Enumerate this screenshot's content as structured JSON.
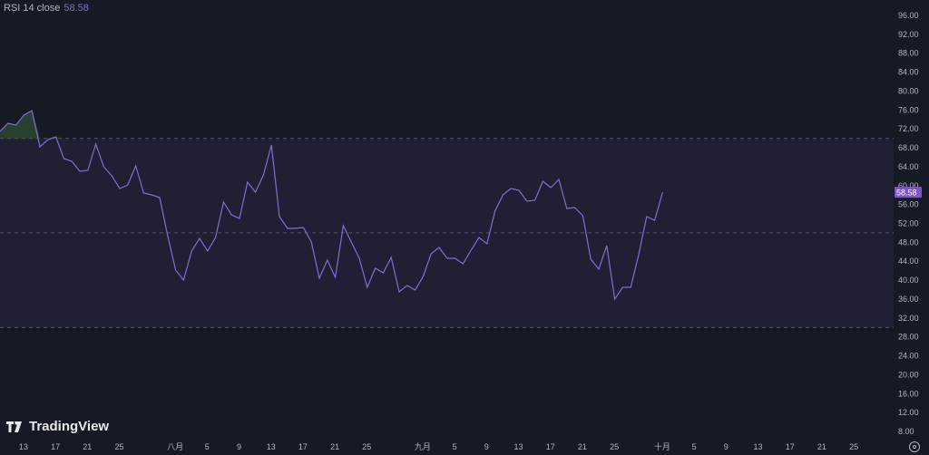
{
  "legend": {
    "name": "RSI 14 close",
    "value": "58.58"
  },
  "branding": {
    "logo_text": "TradingView"
  },
  "colors": {
    "background": "#161a25",
    "line": "#7e6fd0",
    "band": "#7e57c2",
    "price_label": "#7e57c2",
    "overbought_fill": "#2e4a35"
  },
  "chart_data": {
    "type": "line",
    "title": "",
    "ylim": [
      6,
      98
    ],
    "yticks": [
      "96.00",
      "92.00",
      "88.00",
      "84.00",
      "80.00",
      "76.00",
      "72.00",
      "68.00",
      "64.00",
      "60.00",
      "56.00",
      "52.00",
      "48.00",
      "44.00",
      "40.00",
      "36.00",
      "32.00",
      "28.00",
      "24.00",
      "20.00",
      "16.00",
      "12.00",
      "8.00"
    ],
    "levels": {
      "upper": 70,
      "middle": 50,
      "lower": 30
    },
    "last_value_label": "58.58",
    "xticks": [
      "13",
      "17",
      "21",
      "25",
      "八月",
      "5",
      "9",
      "13",
      "17",
      "21",
      "25",
      "九月",
      "5",
      "9",
      "13",
      "17",
      "21",
      "25",
      "十月",
      "5",
      "9",
      "13",
      "17",
      "21",
      "25"
    ],
    "series": [
      {
        "values": [
          71.46,
          73.19,
          72.8,
          74.91,
          75.87,
          68.2,
          69.73,
          70.31,
          65.71,
          65.13,
          63.02,
          63.22,
          68.78,
          63.98,
          62.07,
          59.38,
          60.15,
          64.17,
          58.42,
          58.04,
          57.46,
          49.41,
          42.13,
          40.02,
          46.15,
          48.84,
          46.15,
          49.03,
          56.51,
          53.82,
          53.06,
          60.72,
          58.62,
          62.26,
          68.58,
          53.44,
          50.95,
          50.95,
          51.14,
          48.07,
          40.4,
          44.24,
          40.59,
          51.52,
          48.07,
          44.62,
          38.48,
          42.51,
          41.55,
          44.81,
          37.53,
          38.87,
          37.91,
          40.79,
          45.58,
          46.92,
          44.62,
          44.62,
          43.47,
          46.34,
          49.03,
          47.69,
          54.59,
          58.04,
          59.38,
          59.0,
          56.7,
          56.89,
          60.92,
          59.57,
          61.3,
          55.16,
          55.36,
          53.63,
          44.43,
          42.32,
          47.3,
          35.99,
          38.48,
          38.48,
          45.39,
          53.44,
          52.67,
          58.58
        ]
      }
    ]
  }
}
